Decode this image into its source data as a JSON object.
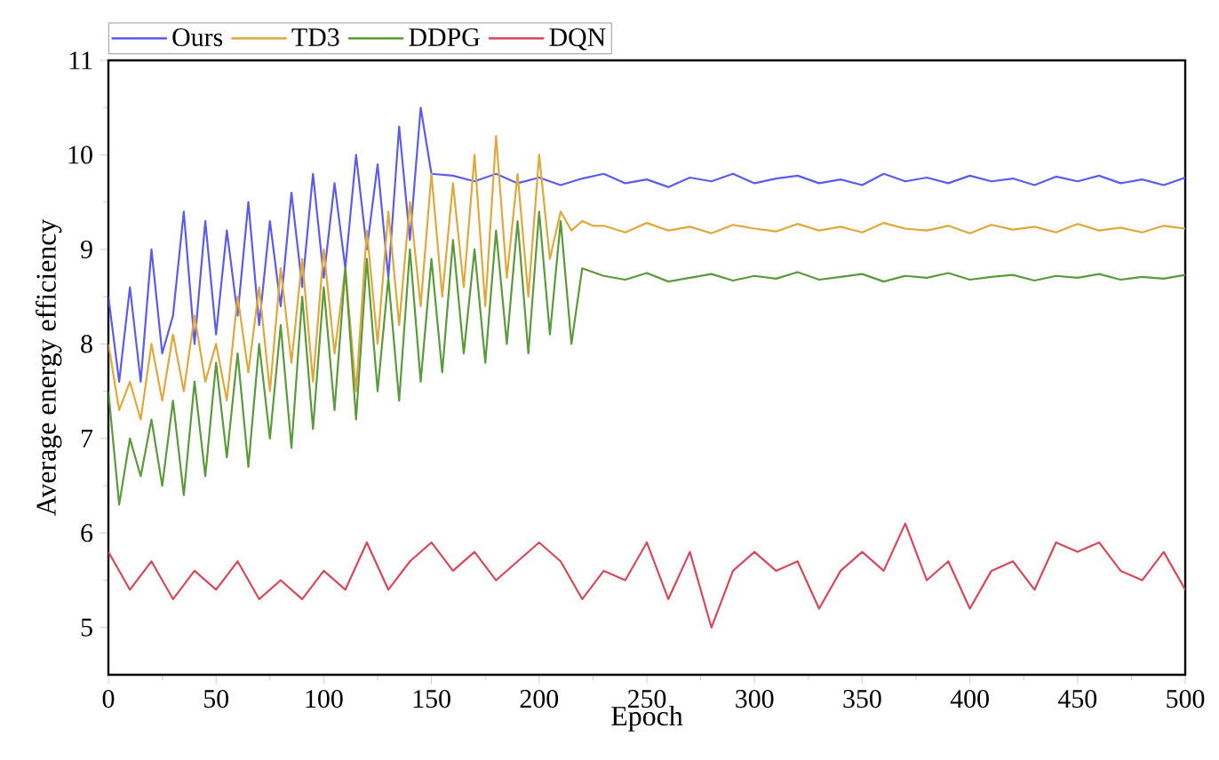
{
  "chart_data": {
    "type": "line",
    "xlabel": "Epoch",
    "ylabel": "Average energy efficiency",
    "xlim": [
      0,
      500
    ],
    "ylim": [
      4.5,
      11
    ],
    "xticks": [
      0,
      50,
      100,
      150,
      200,
      250,
      300,
      350,
      400,
      450,
      500
    ],
    "yticks": [
      5,
      6,
      7,
      8,
      9,
      10,
      11
    ],
    "grid": false,
    "legend": "top",
    "series": [
      {
        "name": "Ours",
        "color": "#5b5bf0",
        "x": [
          0,
          5,
          10,
          15,
          20,
          25,
          30,
          35,
          40,
          45,
          50,
          55,
          60,
          65,
          70,
          75,
          80,
          85,
          90,
          95,
          100,
          105,
          110,
          115,
          120,
          125,
          130,
          135,
          140,
          145,
          150,
          160,
          170,
          180,
          190,
          200,
          210,
          220,
          230,
          240,
          250,
          260,
          270,
          280,
          290,
          300,
          310,
          320,
          330,
          340,
          350,
          360,
          370,
          380,
          390,
          400,
          410,
          420,
          430,
          440,
          450,
          460,
          470,
          480,
          490,
          500
        ],
        "values": [
          8.5,
          7.6,
          8.6,
          7.6,
          9.0,
          7.9,
          8.3,
          9.4,
          8.0,
          9.3,
          8.1,
          9.2,
          8.3,
          9.5,
          8.2,
          9.3,
          8.4,
          9.6,
          8.6,
          9.8,
          8.7,
          9.7,
          8.8,
          10.0,
          9.0,
          9.9,
          8.7,
          10.3,
          9.1,
          10.5,
          9.8,
          9.78,
          9.72,
          9.8,
          9.7,
          9.76,
          9.68,
          9.75,
          9.8,
          9.7,
          9.74,
          9.66,
          9.76,
          9.72,
          9.8,
          9.7,
          9.75,
          9.78,
          9.7,
          9.74,
          9.68,
          9.8,
          9.72,
          9.76,
          9.7,
          9.78,
          9.72,
          9.75,
          9.68,
          9.77,
          9.72,
          9.78,
          9.7,
          9.74,
          9.68,
          9.76
        ]
      },
      {
        "name": "TD3",
        "color": "#e0a83a",
        "x": [
          0,
          5,
          10,
          15,
          20,
          25,
          30,
          35,
          40,
          45,
          50,
          55,
          60,
          65,
          70,
          75,
          80,
          85,
          90,
          95,
          100,
          105,
          110,
          115,
          120,
          125,
          130,
          135,
          140,
          145,
          150,
          155,
          160,
          165,
          170,
          175,
          180,
          185,
          190,
          195,
          200,
          205,
          210,
          215,
          220,
          225,
          230,
          240,
          250,
          260,
          270,
          280,
          290,
          300,
          310,
          320,
          330,
          340,
          350,
          360,
          370,
          380,
          390,
          400,
          410,
          420,
          430,
          440,
          450,
          460,
          470,
          480,
          490,
          500
        ],
        "values": [
          8.0,
          7.3,
          7.6,
          7.2,
          8.0,
          7.4,
          8.1,
          7.5,
          8.3,
          7.6,
          8.0,
          7.4,
          8.5,
          7.7,
          8.6,
          7.5,
          8.8,
          7.8,
          8.9,
          7.6,
          9.0,
          7.9,
          8.8,
          7.5,
          9.2,
          8.0,
          9.4,
          8.2,
          9.5,
          8.4,
          9.8,
          8.5,
          9.7,
          8.6,
          10.0,
          8.4,
          10.2,
          8.7,
          9.8,
          8.5,
          10.0,
          8.9,
          9.4,
          9.2,
          9.3,
          9.25,
          9.25,
          9.18,
          9.28,
          9.2,
          9.24,
          9.17,
          9.26,
          9.22,
          9.19,
          9.27,
          9.2,
          9.24,
          9.18,
          9.28,
          9.22,
          9.2,
          9.25,
          9.17,
          9.26,
          9.21,
          9.24,
          9.18,
          9.27,
          9.2,
          9.23,
          9.18,
          9.25,
          9.22
        ]
      },
      {
        "name": "DDPG",
        "color": "#5a9a3a",
        "x": [
          0,
          5,
          10,
          15,
          20,
          25,
          30,
          35,
          40,
          45,
          50,
          55,
          60,
          65,
          70,
          75,
          80,
          85,
          90,
          95,
          100,
          105,
          110,
          115,
          120,
          125,
          130,
          135,
          140,
          145,
          150,
          155,
          160,
          165,
          170,
          175,
          180,
          185,
          190,
          195,
          200,
          205,
          210,
          215,
          220,
          230,
          240,
          250,
          260,
          270,
          280,
          290,
          300,
          310,
          320,
          330,
          340,
          350,
          360,
          370,
          380,
          390,
          400,
          410,
          420,
          430,
          440,
          450,
          460,
          470,
          480,
          490,
          500
        ],
        "values": [
          7.5,
          6.3,
          7.0,
          6.6,
          7.2,
          6.5,
          7.4,
          6.4,
          7.6,
          6.6,
          7.8,
          6.8,
          7.9,
          6.7,
          8.0,
          7.0,
          8.2,
          6.9,
          8.5,
          7.1,
          8.6,
          7.3,
          8.8,
          7.2,
          8.9,
          7.5,
          8.7,
          7.4,
          9.0,
          7.6,
          8.9,
          7.7,
          9.1,
          7.9,
          9.0,
          7.8,
          9.2,
          8.0,
          9.3,
          7.9,
          9.4,
          8.1,
          9.3,
          8.0,
          8.8,
          8.72,
          8.68,
          8.75,
          8.66,
          8.7,
          8.74,
          8.67,
          8.72,
          8.69,
          8.76,
          8.68,
          8.71,
          8.74,
          8.66,
          8.72,
          8.7,
          8.75,
          8.68,
          8.71,
          8.73,
          8.67,
          8.72,
          8.7,
          8.74,
          8.68,
          8.71,
          8.69,
          8.73
        ]
      },
      {
        "name": "DQN",
        "color": "#d9485a",
        "x": [
          0,
          10,
          20,
          30,
          40,
          50,
          60,
          70,
          80,
          90,
          100,
          110,
          120,
          130,
          140,
          150,
          160,
          170,
          180,
          190,
          200,
          210,
          220,
          230,
          240,
          250,
          260,
          270,
          280,
          290,
          300,
          310,
          320,
          330,
          340,
          350,
          360,
          370,
          380,
          390,
          400,
          410,
          420,
          430,
          440,
          450,
          460,
          470,
          480,
          490,
          500
        ],
        "values": [
          5.8,
          5.4,
          5.7,
          5.3,
          5.6,
          5.4,
          5.7,
          5.3,
          5.5,
          5.3,
          5.6,
          5.4,
          5.9,
          5.4,
          5.7,
          5.9,
          5.6,
          5.8,
          5.5,
          5.7,
          5.9,
          5.7,
          5.3,
          5.6,
          5.5,
          5.9,
          5.3,
          5.8,
          5.0,
          5.6,
          5.8,
          5.6,
          5.7,
          5.2,
          5.6,
          5.8,
          5.6,
          6.1,
          5.5,
          5.7,
          5.2,
          5.6,
          5.7,
          5.4,
          5.9,
          5.8,
          5.9,
          5.6,
          5.5,
          5.8,
          5.4
        ]
      }
    ]
  }
}
